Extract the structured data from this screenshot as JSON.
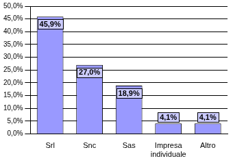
{
  "chart_data": {
    "type": "bar",
    "categories": [
      "Srl",
      "Snc",
      "Sas",
      "Impresa individuale",
      "Altro"
    ],
    "values": [
      45.9,
      27.0,
      18.9,
      4.1,
      4.1
    ],
    "value_labels": [
      "45,9%",
      "27,0%",
      "18,9%",
      "4,1%",
      "4,1%"
    ],
    "data_labels": true,
    "color": "#9999ff",
    "ylim": [
      0,
      50
    ],
    "yticks": [
      {
        "value": 0,
        "label": "0,0%"
      },
      {
        "value": 5,
        "label": "5,0%"
      },
      {
        "value": 10,
        "label": "10,0%"
      },
      {
        "value": 15,
        "label": "15,0%"
      },
      {
        "value": 20,
        "label": "20,0%"
      },
      {
        "value": 25,
        "label": "25,0%"
      },
      {
        "value": 30,
        "label": "30,0%"
      },
      {
        "value": 35,
        "label": "35,0%"
      },
      {
        "value": 40,
        "label": "40,0%"
      },
      {
        "value": 45,
        "label": "45,0%"
      },
      {
        "value": 50,
        "label": "50,0%"
      }
    ],
    "grid": true
  }
}
